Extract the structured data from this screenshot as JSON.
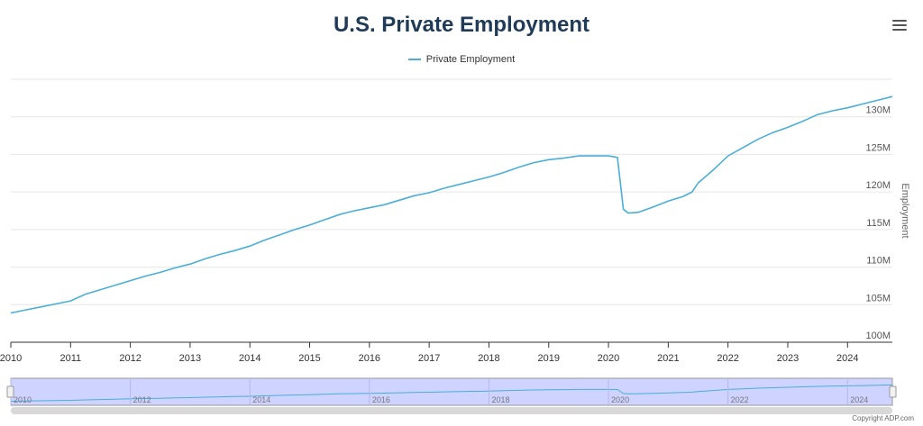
{
  "chart_data": {
    "type": "line",
    "title": "U.S. Private Employment",
    "ylabel": "Employment",
    "xlabel": "",
    "legend": {
      "position": "top-center",
      "entries": [
        "Private Employment"
      ]
    },
    "grid": true,
    "ylim": [
      100,
      135
    ],
    "xlim": [
      2010.0,
      2024.75
    ],
    "yticks": [
      {
        "value": 100,
        "label": "100M"
      },
      {
        "value": 105,
        "label": "105M"
      },
      {
        "value": 110,
        "label": "110M"
      },
      {
        "value": 115,
        "label": "115M"
      },
      {
        "value": 120,
        "label": "120M"
      },
      {
        "value": 125,
        "label": "125M"
      },
      {
        "value": 130,
        "label": "130M"
      }
    ],
    "xticks": [
      "2010",
      "2011",
      "2012",
      "2013",
      "2014",
      "2015",
      "2016",
      "2017",
      "2018",
      "2019",
      "2020",
      "2021",
      "2022",
      "2023",
      "2024"
    ],
    "navigator_ticks": [
      "2010",
      "2012",
      "2014",
      "2016",
      "2018",
      "2020",
      "2022",
      "2024"
    ],
    "series": [
      {
        "name": "Private Employment",
        "color": "#4aaed9",
        "x": [
          2010.0,
          2010.25,
          2010.5,
          2010.75,
          2011.0,
          2011.25,
          2011.5,
          2011.75,
          2012.0,
          2012.25,
          2012.5,
          2012.75,
          2013.0,
          2013.25,
          2013.5,
          2013.75,
          2014.0,
          2014.25,
          2014.5,
          2014.75,
          2015.0,
          2015.25,
          2015.5,
          2015.75,
          2016.0,
          2016.25,
          2016.5,
          2016.75,
          2017.0,
          2017.25,
          2017.5,
          2017.75,
          2018.0,
          2018.25,
          2018.5,
          2018.75,
          2019.0,
          2019.25,
          2019.5,
          2019.75,
          2020.0,
          2020.15,
          2020.25,
          2020.33,
          2020.5,
          2020.75,
          2021.0,
          2021.25,
          2021.4,
          2021.5,
          2021.75,
          2022.0,
          2022.25,
          2022.5,
          2022.75,
          2023.0,
          2023.25,
          2023.5,
          2023.75,
          2024.0,
          2024.25,
          2024.5,
          2024.75
        ],
        "y": [
          103.9,
          104.3,
          104.7,
          105.1,
          105.5,
          106.4,
          107.0,
          107.6,
          108.2,
          108.8,
          109.3,
          109.9,
          110.4,
          111.1,
          111.7,
          112.2,
          112.8,
          113.6,
          114.3,
          115.0,
          115.6,
          116.3,
          117.0,
          117.5,
          117.9,
          118.3,
          118.9,
          119.5,
          119.9,
          120.5,
          121.0,
          121.5,
          122.0,
          122.6,
          123.3,
          123.9,
          124.3,
          124.5,
          124.8,
          124.8,
          124.8,
          124.6,
          117.7,
          117.2,
          117.3,
          118.0,
          118.8,
          119.4,
          120.0,
          121.2,
          122.9,
          124.8,
          125.9,
          127.0,
          127.9,
          128.6,
          129.4,
          130.3,
          130.8,
          131.2,
          131.7,
          132.2,
          132.7
        ]
      }
    ]
  },
  "footer": {
    "credit": "Copyright ADP.com"
  },
  "colors": {
    "title": "#1f3b57",
    "series": "#4aaed9",
    "navigator_fill": "#cfd3ff"
  },
  "icons": {
    "menu": "hamburger-menu-icon"
  }
}
